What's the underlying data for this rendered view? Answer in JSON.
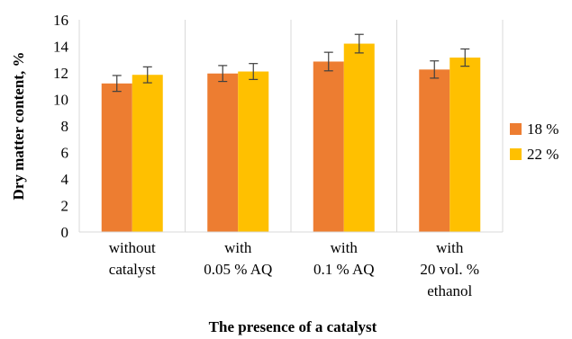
{
  "chart_data": {
    "type": "bar",
    "categories": [
      [
        "without",
        "catalyst"
      ],
      [
        "with",
        "0.05 % AQ"
      ],
      [
        "with",
        "0.1 % AQ"
      ],
      [
        "with",
        "20 vol. %",
        "ethanol"
      ]
    ],
    "series": [
      {
        "name": "18 %",
        "color": "#ED7D31",
        "values": [
          11.2,
          11.95,
          12.85,
          12.25
        ],
        "errors": [
          0.6,
          0.6,
          0.7,
          0.65
        ]
      },
      {
        "name": "22 %",
        "color": "#FFC000",
        "values": [
          11.85,
          12.1,
          14.2,
          13.15
        ],
        "errors": [
          0.6,
          0.6,
          0.7,
          0.65
        ]
      }
    ],
    "xlabel": "The presence of a catalyst",
    "ylabel": "Dry matter content, %",
    "ylim": [
      0,
      16
    ],
    "yticks": [
      0,
      2,
      4,
      6,
      8,
      10,
      12,
      14,
      16
    ],
    "grid": "vertical",
    "legend": "right"
  }
}
